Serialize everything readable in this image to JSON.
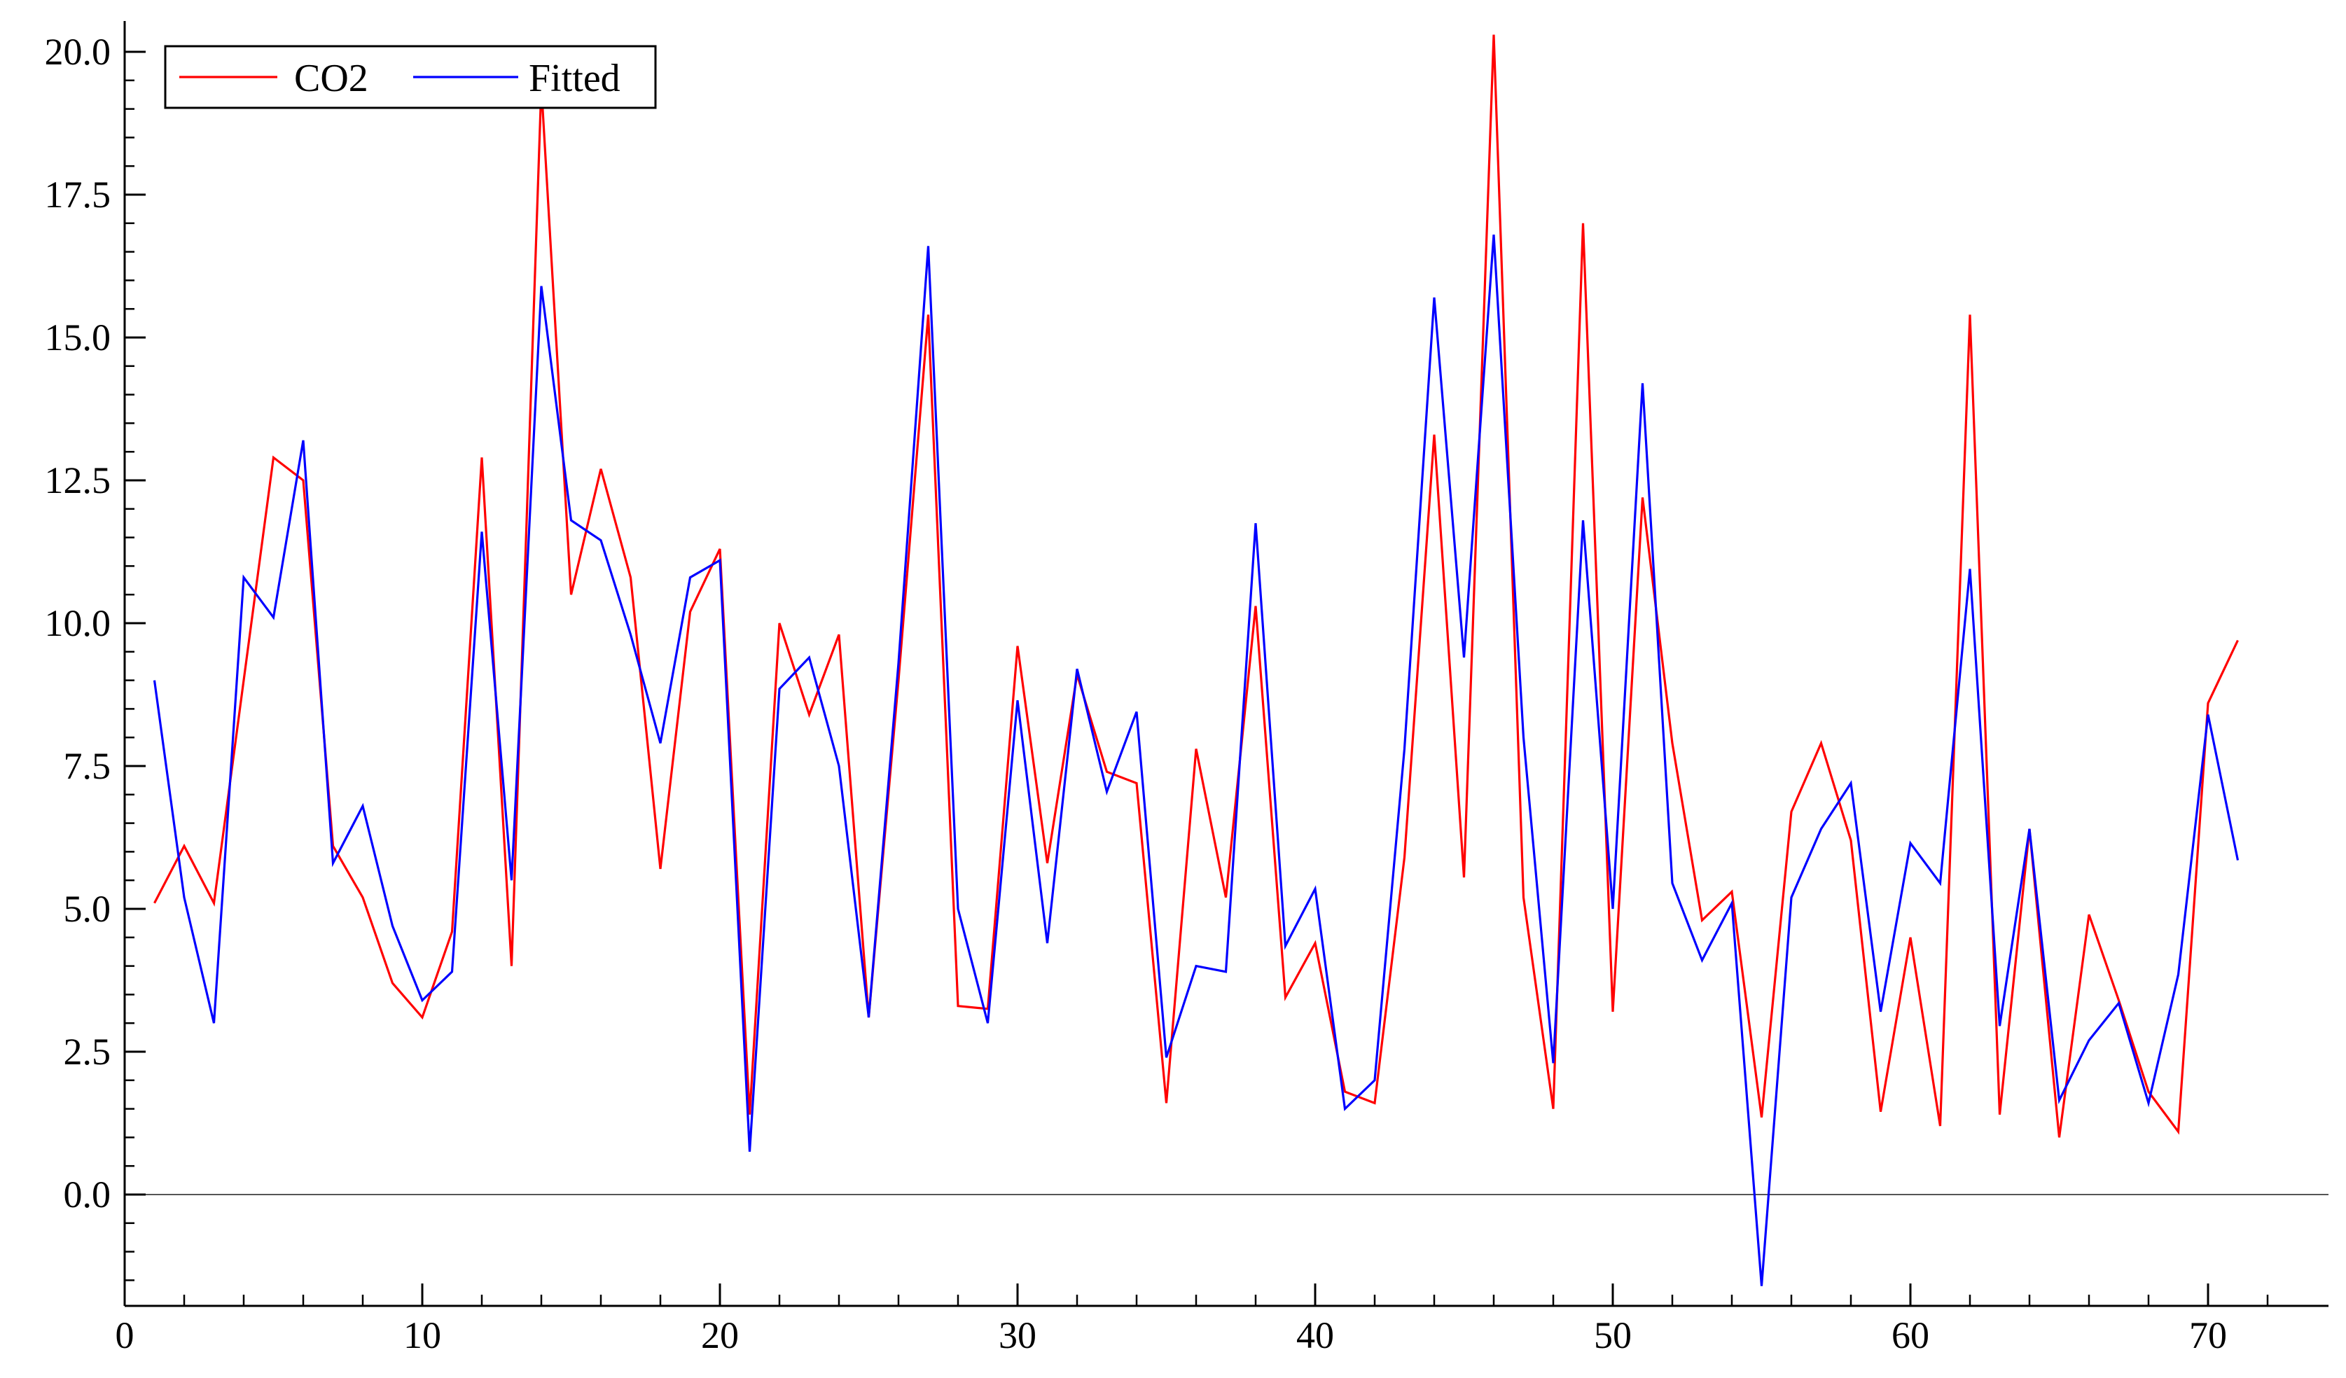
{
  "chart_data": {
    "type": "line",
    "title": "",
    "xlabel": "",
    "ylabel": "",
    "xlim": [
      0,
      74
    ],
    "ylim": [
      -2,
      20.5
    ],
    "grid": false,
    "legend_placement": "top-left",
    "xticks": [
      0,
      10,
      20,
      30,
      40,
      50,
      60,
      70
    ],
    "xtick_labels": [
      "0",
      "10",
      "20",
      "30",
      "40",
      "50",
      "60",
      "70"
    ],
    "yticks": [
      0,
      2.5,
      5,
      7.5,
      10,
      12.5,
      15,
      17.5,
      20
    ],
    "ytick_labels": [
      "0.0",
      "2.5",
      "5.0",
      "7.5",
      "10.0",
      "12.5",
      "15.0",
      "17.5",
      "20.0"
    ],
    "reference_line_y": 0,
    "x": [
      1,
      2,
      3,
      4,
      5,
      6,
      7,
      8,
      9,
      10,
      11,
      12,
      13,
      14,
      15,
      16,
      17,
      18,
      19,
      20,
      21,
      22,
      23,
      24,
      25,
      26,
      27,
      28,
      29,
      30,
      31,
      32,
      33,
      34,
      35,
      36,
      37,
      38,
      39,
      40,
      41,
      42,
      43,
      44,
      45,
      46,
      47,
      48,
      49,
      50,
      51,
      52,
      53,
      54,
      55,
      56,
      57,
      58,
      59,
      60,
      61,
      62,
      63,
      64,
      65,
      66,
      67,
      68,
      69,
      70,
      71
    ],
    "series": [
      {
        "name": "CO2",
        "color": "#ff0000",
        "values": [
          5.1,
          6.1,
          5.1,
          9.0,
          12.9,
          12.5,
          6.1,
          5.2,
          3.7,
          3.1,
          4.6,
          12.9,
          4.0,
          19.4,
          10.5,
          12.7,
          10.8,
          5.7,
          10.2,
          11.3,
          1.4,
          10.0,
          8.4,
          9.8,
          3.1,
          9.0,
          15.4,
          3.3,
          3.25,
          9.6,
          5.8,
          9.1,
          7.4,
          7.2,
          1.6,
          7.8,
          5.2,
          10.3,
          3.45,
          4.4,
          1.8,
          1.6,
          5.9,
          13.3,
          5.55,
          20.3,
          5.2,
          1.5,
          17.0,
          3.2,
          12.2,
          7.9,
          4.8,
          5.3,
          1.35,
          6.7,
          7.9,
          6.2,
          1.45,
          4.5,
          1.2,
          15.4,
          1.4,
          6.4,
          1.0,
          4.9,
          3.4,
          1.8,
          1.1,
          8.6,
          9.7
        ]
      },
      {
        "name": "Fitted",
        "color": "#0000ff",
        "values": [
          9.0,
          5.2,
          3.0,
          10.8,
          10.1,
          13.2,
          5.8,
          6.8,
          4.7,
          3.4,
          3.9,
          11.6,
          5.5,
          15.9,
          11.8,
          11.45,
          9.8,
          7.9,
          10.8,
          11.1,
          0.75,
          8.85,
          9.4,
          7.5,
          3.1,
          9.3,
          16.6,
          5.0,
          3.0,
          8.65,
          4.4,
          9.2,
          7.05,
          8.45,
          2.4,
          4.0,
          3.9,
          11.75,
          4.35,
          5.35,
          1.5,
          2.0,
          7.8,
          15.7,
          9.4,
          16.8,
          8.0,
          2.3,
          11.8,
          5.0,
          14.2,
          5.45,
          4.1,
          5.1,
          -1.6,
          5.2,
          6.4,
          7.2,
          3.2,
          6.15,
          5.45,
          10.95,
          2.95,
          6.4,
          1.65,
          2.7,
          3.35,
          1.6,
          3.85,
          8.4,
          5.85
        ]
      }
    ]
  }
}
